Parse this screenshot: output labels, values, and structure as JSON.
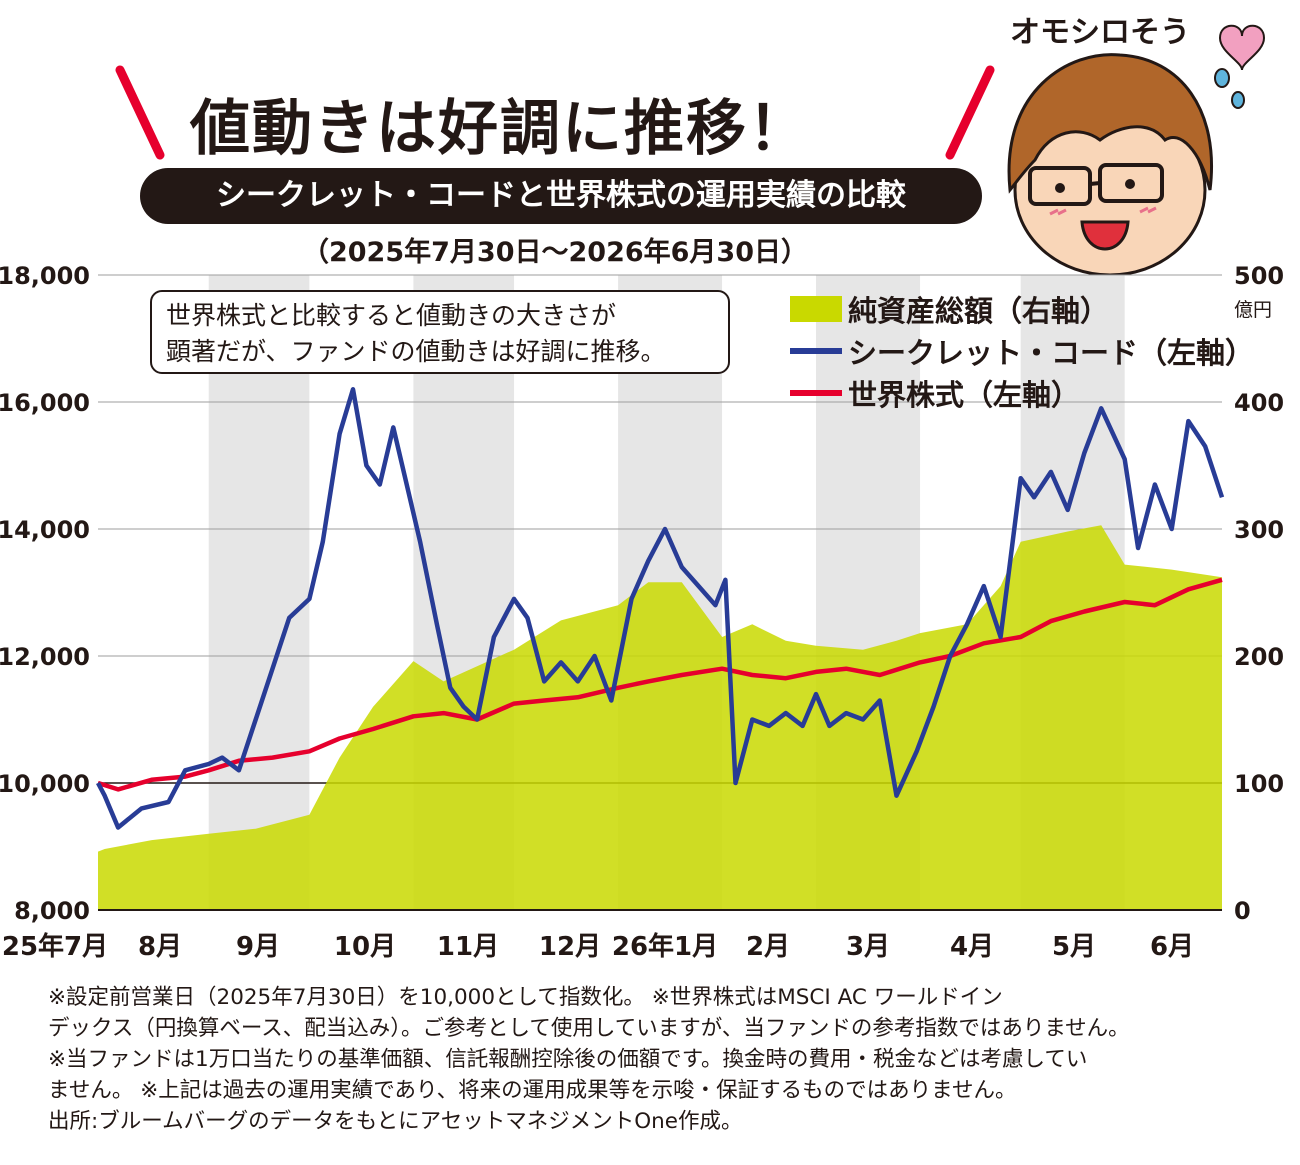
{
  "header": {
    "title": "値動きは好調に推移！",
    "subtitle": "シークレット・コードと世界株式の運用実績の比較",
    "period": "（2025年7月30日〜2026年6月30日）",
    "mascot_caption": "オモシロそう"
  },
  "note_lines": [
    "世界株式と比較すると値動きの大きさが",
    "顕著だが、ファンドの値動きは好調に推移。"
  ],
  "footnotes": [
    "※設定前営業日（2025年7月30日）を10,000として指数化。 ※世界株式はMSCI AC ワールドイン",
    "デックス（円換算ベース、配当込み）。ご参考として使用していますが、当ファンドの参考指数ではありません。",
    "※当ファンドは1万口当たりの基準価額、信託報酬控除後の価額です。換金時の費用・税金などは考慮してい",
    "ません。 ※上記は過去の運用実績であり、将来の運用成果等を示唆・保証するものではありません。",
    "出所:ブルームバーグのデータをもとにアセットマネジメントOne作成。"
  ],
  "colors": {
    "area": "#c9d900",
    "fund_line": "#283c96",
    "index_line": "#e6002d",
    "band": "#e6e6e6",
    "accent": "#e6002d"
  },
  "chart_data": {
    "type": "line",
    "x_labels": [
      "25年7月",
      "8月",
      "9月",
      "10月",
      "11月",
      "12月",
      "26年1月",
      "2月",
      "3月",
      "4月",
      "5月",
      "6月"
    ],
    "y_left": {
      "min": 8000,
      "max": 18000,
      "ticks": [
        "8,000",
        "10,000",
        "12,000",
        "14,000",
        "16,000",
        "18,000"
      ]
    },
    "y_right": {
      "min": 0,
      "max": 500,
      "unit": "億円",
      "ticks": [
        "0",
        "100",
        "200",
        "300",
        "400",
        "500"
      ]
    },
    "grid": "horizontal",
    "legend_position": "top-right",
    "series": [
      {
        "name": "純資産総額（右軸）",
        "type": "area",
        "axis": "right",
        "dates": [
          "2025-07-30",
          "2025-08-01",
          "2025-08-15",
          "2025-09-01",
          "2025-09-15",
          "2025-10-01",
          "2025-10-10",
          "2025-10-20",
          "2025-11-01",
          "2025-11-10",
          "2025-11-20",
          "2025-12-01",
          "2025-12-15",
          "2026-01-01",
          "2026-01-10",
          "2026-01-20",
          "2026-02-01",
          "2026-02-10",
          "2026-02-20",
          "2026-03-01",
          "2026-03-15",
          "2026-03-25",
          "2026-04-01",
          "2026-04-15",
          "2026-04-25",
          "2026-05-01",
          "2026-05-15",
          "2026-05-25",
          "2026-06-01",
          "2026-06-15",
          "2026-06-30"
        ],
        "values": [
          46,
          48,
          55,
          60,
          64,
          75,
          120,
          160,
          196,
          180,
          192,
          205,
          228,
          240,
          258,
          258,
          215,
          225,
          212,
          208,
          205,
          212,
          218,
          225,
          255,
          290,
          298,
          303,
          272,
          268,
          262
        ]
      },
      {
        "name": "シークレット・コード（左軸）",
        "type": "line",
        "axis": "left",
        "dates": [
          "2025-07-30",
          "2025-08-01",
          "2025-08-05",
          "2025-08-12",
          "2025-08-20",
          "2025-08-25",
          "2025-09-01",
          "2025-09-05",
          "2025-09-10",
          "2025-09-15",
          "2025-09-20",
          "2025-09-25",
          "2025-10-01",
          "2025-10-05",
          "2025-10-10",
          "2025-10-14",
          "2025-10-18",
          "2025-10-22",
          "2025-10-26",
          "2025-10-30",
          "2025-11-03",
          "2025-11-08",
          "2025-11-12",
          "2025-11-16",
          "2025-11-20",
          "2025-11-25",
          "2025-12-01",
          "2025-12-05",
          "2025-12-10",
          "2025-12-15",
          "2025-12-20",
          "2025-12-25",
          "2025-12-30",
          "2026-01-05",
          "2026-01-10",
          "2026-01-15",
          "2026-01-20",
          "2026-01-25",
          "2026-01-30",
          "2026-02-02",
          "2026-02-05",
          "2026-02-10",
          "2026-02-15",
          "2026-02-20",
          "2026-02-25",
          "2026-03-01",
          "2026-03-05",
          "2026-03-10",
          "2026-03-15",
          "2026-03-20",
          "2026-03-25",
          "2026-03-31",
          "2026-04-05",
          "2026-04-10",
          "2026-04-15",
          "2026-04-20",
          "2026-04-25",
          "2026-05-01",
          "2026-05-05",
          "2026-05-10",
          "2026-05-15",
          "2026-05-20",
          "2026-05-25",
          "2026-06-01",
          "2026-06-05",
          "2026-06-10",
          "2026-06-15",
          "2026-06-20",
          "2026-06-25",
          "2026-06-30"
        ],
        "values": [
          10000,
          9800,
          9300,
          9600,
          9700,
          10200,
          10300,
          10400,
          10200,
          11000,
          11800,
          12600,
          12900,
          13800,
          15500,
          16200,
          15000,
          14700,
          15600,
          14700,
          13800,
          12500,
          11500,
          11200,
          11000,
          12300,
          12900,
          12600,
          11600,
          11900,
          11600,
          12000,
          11300,
          12900,
          13500,
          14000,
          13400,
          13100,
          12800,
          13200,
          10000,
          11000,
          10900,
          11100,
          10900,
          11400,
          10900,
          11100,
          11000,
          11300,
          9800,
          10500,
          11200,
          12000,
          12500,
          13100,
          12300,
          14800,
          14500,
          14900,
          14300,
          15200,
          15900,
          15100,
          13700,
          14700,
          14000,
          15700,
          15300,
          14500
        ]
      },
      {
        "name": "世界株式（左軸）",
        "type": "line",
        "axis": "left",
        "dates": [
          "2025-07-30",
          "2025-08-05",
          "2025-08-15",
          "2025-08-25",
          "2025-09-01",
          "2025-09-10",
          "2025-09-20",
          "2025-10-01",
          "2025-10-10",
          "2025-10-20",
          "2025-11-01",
          "2025-11-10",
          "2025-11-20",
          "2025-12-01",
          "2025-12-10",
          "2025-12-20",
          "2026-01-01",
          "2026-01-10",
          "2026-01-20",
          "2026-02-01",
          "2026-02-10",
          "2026-02-20",
          "2026-03-01",
          "2026-03-10",
          "2026-03-20",
          "2026-04-01",
          "2026-04-10",
          "2026-04-20",
          "2026-05-01",
          "2026-05-10",
          "2026-05-20",
          "2026-06-01",
          "2026-06-10",
          "2026-06-20",
          "2026-06-30"
        ],
        "values": [
          10000,
          9900,
          10050,
          10100,
          10200,
          10350,
          10400,
          10500,
          10700,
          10850,
          11050,
          11100,
          11000,
          11250,
          11300,
          11350,
          11500,
          11600,
          11700,
          11800,
          11700,
          11650,
          11750,
          11800,
          11700,
          11900,
          12000,
          12200,
          12300,
          12550,
          12700,
          12850,
          12800,
          13050,
          13200
        ]
      }
    ]
  }
}
